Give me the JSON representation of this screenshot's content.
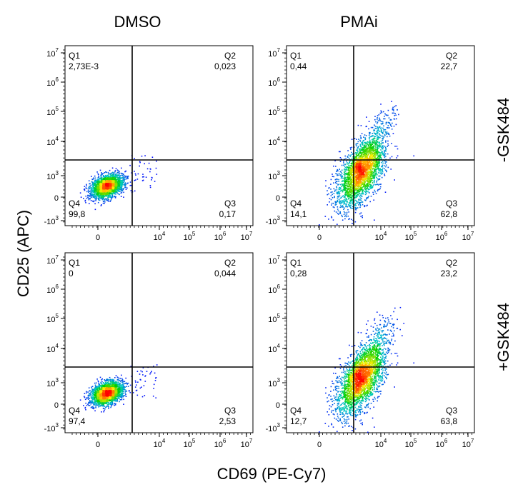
{
  "chart_data": {
    "type": "scatter",
    "subtype": "flow-cytometry-density-quadrant-grid",
    "columns": [
      "DMSO",
      "PMAi"
    ],
    "rows": [
      "-GSK484",
      "+GSK484"
    ],
    "xlabel": "CD69 (PE-Cy7)",
    "ylabel": "CD25 (APC)",
    "x_ticks": [
      {
        "base": "0",
        "exp": ""
      },
      {
        "base": "10",
        "exp": "4"
      },
      {
        "base": "10",
        "exp": "5"
      },
      {
        "base": "10",
        "exp": "6"
      },
      {
        "base": "10",
        "exp": "7"
      }
    ],
    "y_ticks": [
      {
        "base": "-10",
        "exp": "3"
      },
      {
        "base": "0",
        "exp": ""
      },
      {
        "base": "10",
        "exp": "3"
      },
      {
        "base": "10",
        "exp": "4"
      },
      {
        "base": "10",
        "exp": "5"
      },
      {
        "base": "10",
        "exp": "6"
      },
      {
        "base": "10",
        "exp": "7"
      }
    ],
    "quadrant_names": [
      "Q1",
      "Q2",
      "Q3",
      "Q4"
    ],
    "panels": [
      {
        "row": "-GSK484",
        "col": "DMSO",
        "Q1": "2,73E-3",
        "Q2": "0,023",
        "Q3": "0,17",
        "Q4": "99,8"
      },
      {
        "row": "-GSK484",
        "col": "PMAi",
        "Q1": "0,44",
        "Q2": "22,7",
        "Q3": "62,8",
        "Q4": "14,1"
      },
      {
        "row": "+GSK484",
        "col": "DMSO",
        "Q1": "0",
        "Q2": "0,044",
        "Q3": "2,53",
        "Q4": "97,4"
      },
      {
        "row": "+GSK484",
        "col": "PMAi",
        "Q1": "0,28",
        "Q2": "23,2",
        "Q3": "63,8",
        "Q4": "12,7"
      }
    ]
  },
  "colors": {
    "density_low": "#0000ff",
    "density_mid": "#00c8c8",
    "density_midhigh": "#00d000",
    "density_high": "#ffee00",
    "density_peak": "#ff0000",
    "gate_line": "#000000"
  }
}
